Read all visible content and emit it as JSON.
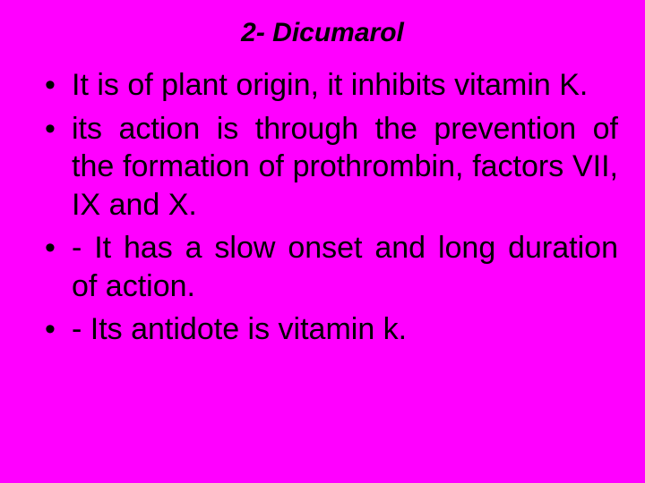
{
  "background_color": "#ff00ff",
  "text_color": "#000000",
  "title": {
    "text": "2- Dicumarol",
    "font_size": 30,
    "font_style": "italic",
    "font_weight": "bold"
  },
  "bullets": {
    "font_size": 34,
    "items": [
      "It is of plant origin, it inhibits vitamin K.",
      "its action is through the prevention of the formation of prothrombin, factors VII, IX and X.",
      "- It has a slow onset and long duration of action.",
      "- Its antidote is vitamin k."
    ]
  }
}
